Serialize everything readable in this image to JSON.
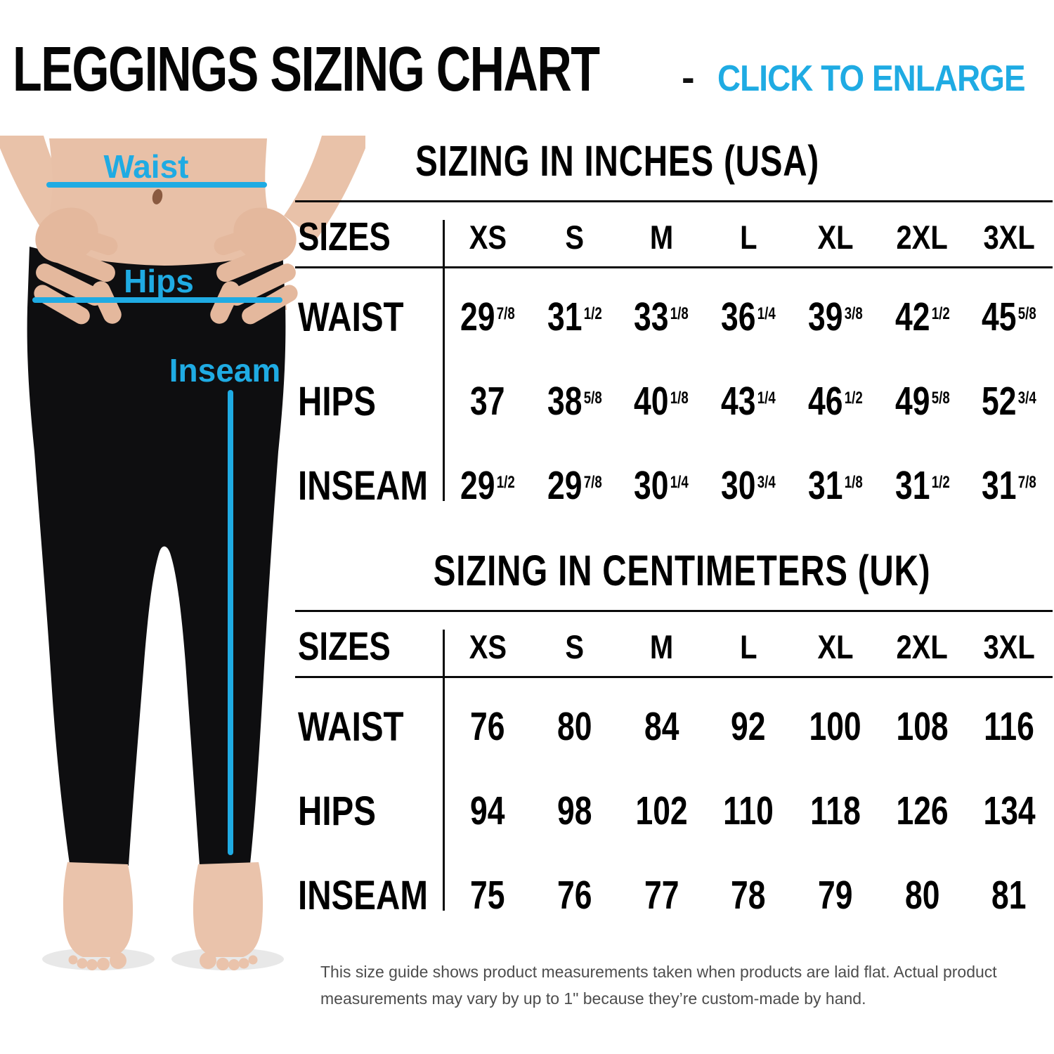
{
  "colors": {
    "accent_blue": "#1fabe3",
    "text_black": "#050505",
    "footnote_gray": "#4d4d4d",
    "leggings_black": "#0e0e10"
  },
  "header": {
    "title": "LEGGINGS SIZING CHART",
    "separator": "-",
    "cta": "CLICK TO ENLARGE"
  },
  "figure": {
    "labels": {
      "waist": "Waist",
      "hips": "Hips",
      "inseam": "Inseam"
    }
  },
  "tables": [
    {
      "title": "SIZING IN INCHES (USA)",
      "header_label": "SIZES",
      "sizes": [
        "XS",
        "S",
        "M",
        "L",
        "XL",
        "2XL",
        "3XL"
      ],
      "rows": [
        {
          "label": "WAIST",
          "values": [
            "29 7/8",
            "31 1/2",
            "33 1/8",
            "36 1/4",
            "39 3/8",
            "42 1/2",
            "45 5/8"
          ]
        },
        {
          "label": "HIPS",
          "values": [
            "37",
            "38 5/8",
            "40 1/8",
            "43 1/4",
            "46 1/2",
            "49 5/8",
            "52 3/4"
          ]
        },
        {
          "label": "INSEAM",
          "values": [
            "29 1/2",
            "29 7/8",
            "30 1/4",
            "30 3/4",
            "31 1/8",
            "31 1/2",
            "31 7/8"
          ]
        }
      ]
    },
    {
      "title": "SIZING IN CENTIMETERS (UK)",
      "header_label": "SIZES",
      "sizes": [
        "XS",
        "S",
        "M",
        "L",
        "XL",
        "2XL",
        "3XL"
      ],
      "rows": [
        {
          "label": "WAIST",
          "values": [
            "76",
            "80",
            "84",
            "92",
            "100",
            "108",
            "116"
          ]
        },
        {
          "label": "HIPS",
          "values": [
            "94",
            "98",
            "102",
            "110",
            "118",
            "126",
            "134"
          ]
        },
        {
          "label": "INSEAM",
          "values": [
            "75",
            "76",
            "77",
            "78",
            "79",
            "80",
            "81"
          ]
        }
      ]
    }
  ],
  "footnote": {
    "text": "This size guide shows product measurements taken when products are laid flat. Actual product measurements may vary by up to 1\" because they’re custom-made by hand."
  }
}
